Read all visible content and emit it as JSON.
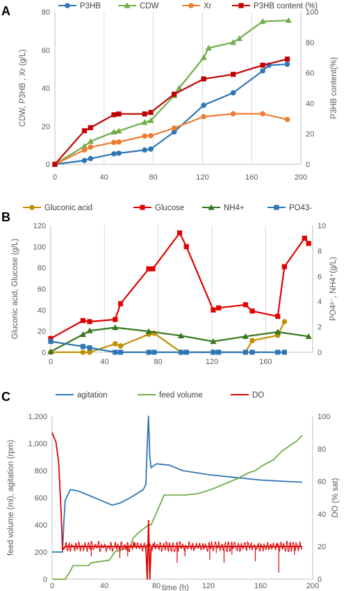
{
  "chart_data": [
    {
      "type": "line",
      "panel": "A",
      "title": "",
      "xlabel": "",
      "ylabel": "CDW, P3HB , Xr (g/L)",
      "y2label": "P3HB content(%)",
      "xlim": [
        0,
        200
      ],
      "ylim": [
        0,
        80
      ],
      "y2lim": [
        0,
        100
      ],
      "xticks": [
        0,
        40,
        80,
        120,
        160,
        200
      ],
      "yticks": [
        0,
        20,
        40,
        60,
        80
      ],
      "y2ticks": [
        0,
        20,
        40,
        60,
        80,
        100
      ],
      "grid": "vertical",
      "legend": "top",
      "series": [
        {
          "name": "P3HB",
          "axis": "left",
          "color": "#2e75b6",
          "marker": "circle",
          "x": [
            0,
            24,
            29,
            48,
            52,
            73,
            78,
            97,
            121,
            145,
            169,
            174,
            189
          ],
          "y": [
            0,
            2,
            3,
            5.5,
            5.8,
            7.5,
            8,
            17,
            31,
            37.5,
            49,
            52,
            52.5
          ]
        },
        {
          "name": "CDW",
          "axis": "left",
          "color": "#70ad47",
          "marker": "triangle",
          "x": [
            0,
            24,
            29,
            48,
            52,
            73,
            78,
            97,
            101,
            121,
            125,
            145,
            150,
            169,
            190
          ],
          "y": [
            0,
            9.5,
            12,
            17,
            17.5,
            22,
            23,
            36,
            40,
            56,
            61,
            64,
            66,
            75,
            75.5
          ]
        },
        {
          "name": "Xr",
          "axis": "left",
          "color": "#ed7d31",
          "marker": "circle",
          "x": [
            0,
            24,
            29,
            48,
            52,
            73,
            78,
            97,
            121,
            145,
            169,
            189
          ],
          "y": [
            0,
            7.5,
            9,
            11.5,
            11.7,
            14.8,
            15,
            19,
            25,
            26.5,
            26.5,
            23.5
          ]
        },
        {
          "name": "P3HB content (%)",
          "axis": "right",
          "color": "#c00000",
          "marker": "square",
          "x": [
            0,
            24,
            29,
            48,
            52,
            73,
            78,
            97,
            121,
            145,
            169,
            189
          ],
          "y": [
            0,
            22,
            24,
            32.5,
            33,
            33,
            34,
            46,
            56,
            59,
            65,
            69
          ]
        }
      ]
    },
    {
      "type": "line",
      "panel": "B",
      "title": "",
      "xlabel": "",
      "ylabel": "Gluconic acid, Glucose (g/L)",
      "y2label": "PO4³⁻, NH4⁺(g/L)",
      "xlim": [
        0,
        195
      ],
      "ylim": [
        0,
        120
      ],
      "y2lim": [
        0,
        10
      ],
      "xticks": [
        0,
        40,
        80,
        120,
        160
      ],
      "yticks": [
        0,
        20,
        40,
        60,
        80,
        100,
        120
      ],
      "y2ticks": [
        0,
        2,
        4,
        6,
        8,
        10
      ],
      "grid": "vertical",
      "legend": "top",
      "series": [
        {
          "name": "Gluconic acid",
          "axis": "left",
          "color": "#bf9000",
          "marker": "circle",
          "x": [
            0,
            24,
            29,
            48,
            52,
            73,
            77,
            97,
            121,
            125,
            145,
            150,
            169,
            174
          ],
          "y": [
            0,
            0,
            0,
            8,
            6,
            17,
            18,
            0,
            0,
            0,
            0,
            11,
            16,
            29
          ]
        },
        {
          "name": "Glucose",
          "axis": "left",
          "color": "#e00000",
          "marker": "square",
          "x": [
            0,
            24,
            29,
            48,
            52,
            73,
            76,
            96,
            101,
            121,
            125,
            145,
            150,
            169,
            174,
            189,
            192
          ],
          "y": [
            13,
            30,
            29,
            31,
            46,
            79,
            79,
            113,
            100,
            40,
            42,
            45,
            39,
            34,
            81,
            108,
            103
          ]
        },
        {
          "name": "NH4+",
          "axis": "right",
          "color": "#38761d",
          "marker": "triangle",
          "x": [
            0,
            24,
            29,
            48,
            73,
            97,
            121,
            145,
            169,
            192
          ],
          "y": [
            0.05,
            1.4,
            1.7,
            1.95,
            1.65,
            1.3,
            0.85,
            1.25,
            1.6,
            1.25
          ]
        },
        {
          "name": "PO43-",
          "axis": "right",
          "color": "#2e75b6",
          "marker": "square",
          "x": [
            0,
            24,
            29,
            48,
            52,
            73,
            77,
            97,
            101,
            121,
            125,
            145,
            150,
            169,
            174
          ],
          "y": [
            0.85,
            0.45,
            0.35,
            0,
            0,
            0,
            0,
            0,
            0,
            0,
            0,
            0,
            0,
            0,
            0
          ]
        }
      ]
    },
    {
      "type": "line",
      "panel": "C",
      "title": "",
      "xlabel": "time (h)",
      "ylabel": "feed volume (ml), agitation (rpm)",
      "y2label": "DO (% sat)",
      "xlim": [
        0,
        200
      ],
      "ylim": [
        0,
        1200
      ],
      "y2lim": [
        0,
        100
      ],
      "xticks": [
        0,
        40,
        80,
        120,
        160,
        200
      ],
      "xticklabels": [
        "0",
        "40",
        "80",
        "120",
        "160",
        "200"
      ],
      "yticks": [
        0,
        200,
        400,
        600,
        800,
        1000,
        1200
      ],
      "yticklabels": [
        "0",
        "200",
        "400",
        "600",
        "800",
        "1,000",
        "1,200"
      ],
      "y2ticks": [
        0,
        20,
        40,
        60,
        80,
        100
      ],
      "grid": "none",
      "legend": "top",
      "series": [
        {
          "name": "agitation",
          "axis": "left",
          "color": "#2e75b6",
          "x": [
            0,
            8,
            9,
            10,
            14,
            20,
            30,
            40,
            46,
            52,
            60,
            70,
            72,
            73,
            74,
            75,
            76,
            80,
            90,
            100,
            120,
            140,
            160,
            180,
            192
          ],
          "y": [
            200,
            200,
            420,
            580,
            660,
            650,
            610,
            570,
            545,
            560,
            600,
            660,
            700,
            990,
            1200,
            900,
            820,
            850,
            840,
            800,
            770,
            750,
            730,
            720,
            715
          ]
        },
        {
          "name": "feed volume",
          "axis": "left",
          "color": "#70ad47",
          "x": [
            0,
            10,
            14,
            16,
            28,
            30,
            44,
            48,
            60,
            62,
            66,
            74,
            76,
            86,
            88,
            100,
            102,
            112,
            122,
            132,
            142,
            150,
            156,
            162,
            170,
            176,
            182,
            188,
            192
          ],
          "y": [
            0,
            0,
            60,
            100,
            100,
            120,
            140,
            200,
            240,
            300,
            340,
            400,
            400,
            620,
            620,
            620,
            620,
            630,
            660,
            700,
            740,
            780,
            800,
            840,
            880,
            940,
            980,
            1020,
            1060
          ]
        },
        {
          "name": "DO",
          "axis": "right",
          "color": "#e00000",
          "x": [
            0,
            1,
            3,
            5,
            7,
            8,
            10,
            20,
            40,
            60,
            72,
            73,
            74,
            75,
            76,
            80,
            100,
            120,
            140,
            160,
            180,
            192
          ],
          "y": [
            90,
            88,
            84,
            72,
            40,
            18,
            20,
            20,
            20,
            20,
            20,
            0,
            36,
            0,
            20,
            20,
            20,
            20,
            20,
            20,
            20,
            20
          ],
          "dips": [
            [
              30,
              14
            ],
            [
              52,
              13
            ],
            [
              58,
              14
            ],
            [
              96,
              10
            ],
            [
              102,
              14
            ],
            [
              121,
              12
            ],
            [
              126,
              16
            ],
            [
              132,
              10
            ],
            [
              138,
              15
            ],
            [
              156,
              11
            ],
            [
              174,
              4
            ],
            [
              186,
              15
            ]
          ]
        }
      ]
    }
  ]
}
